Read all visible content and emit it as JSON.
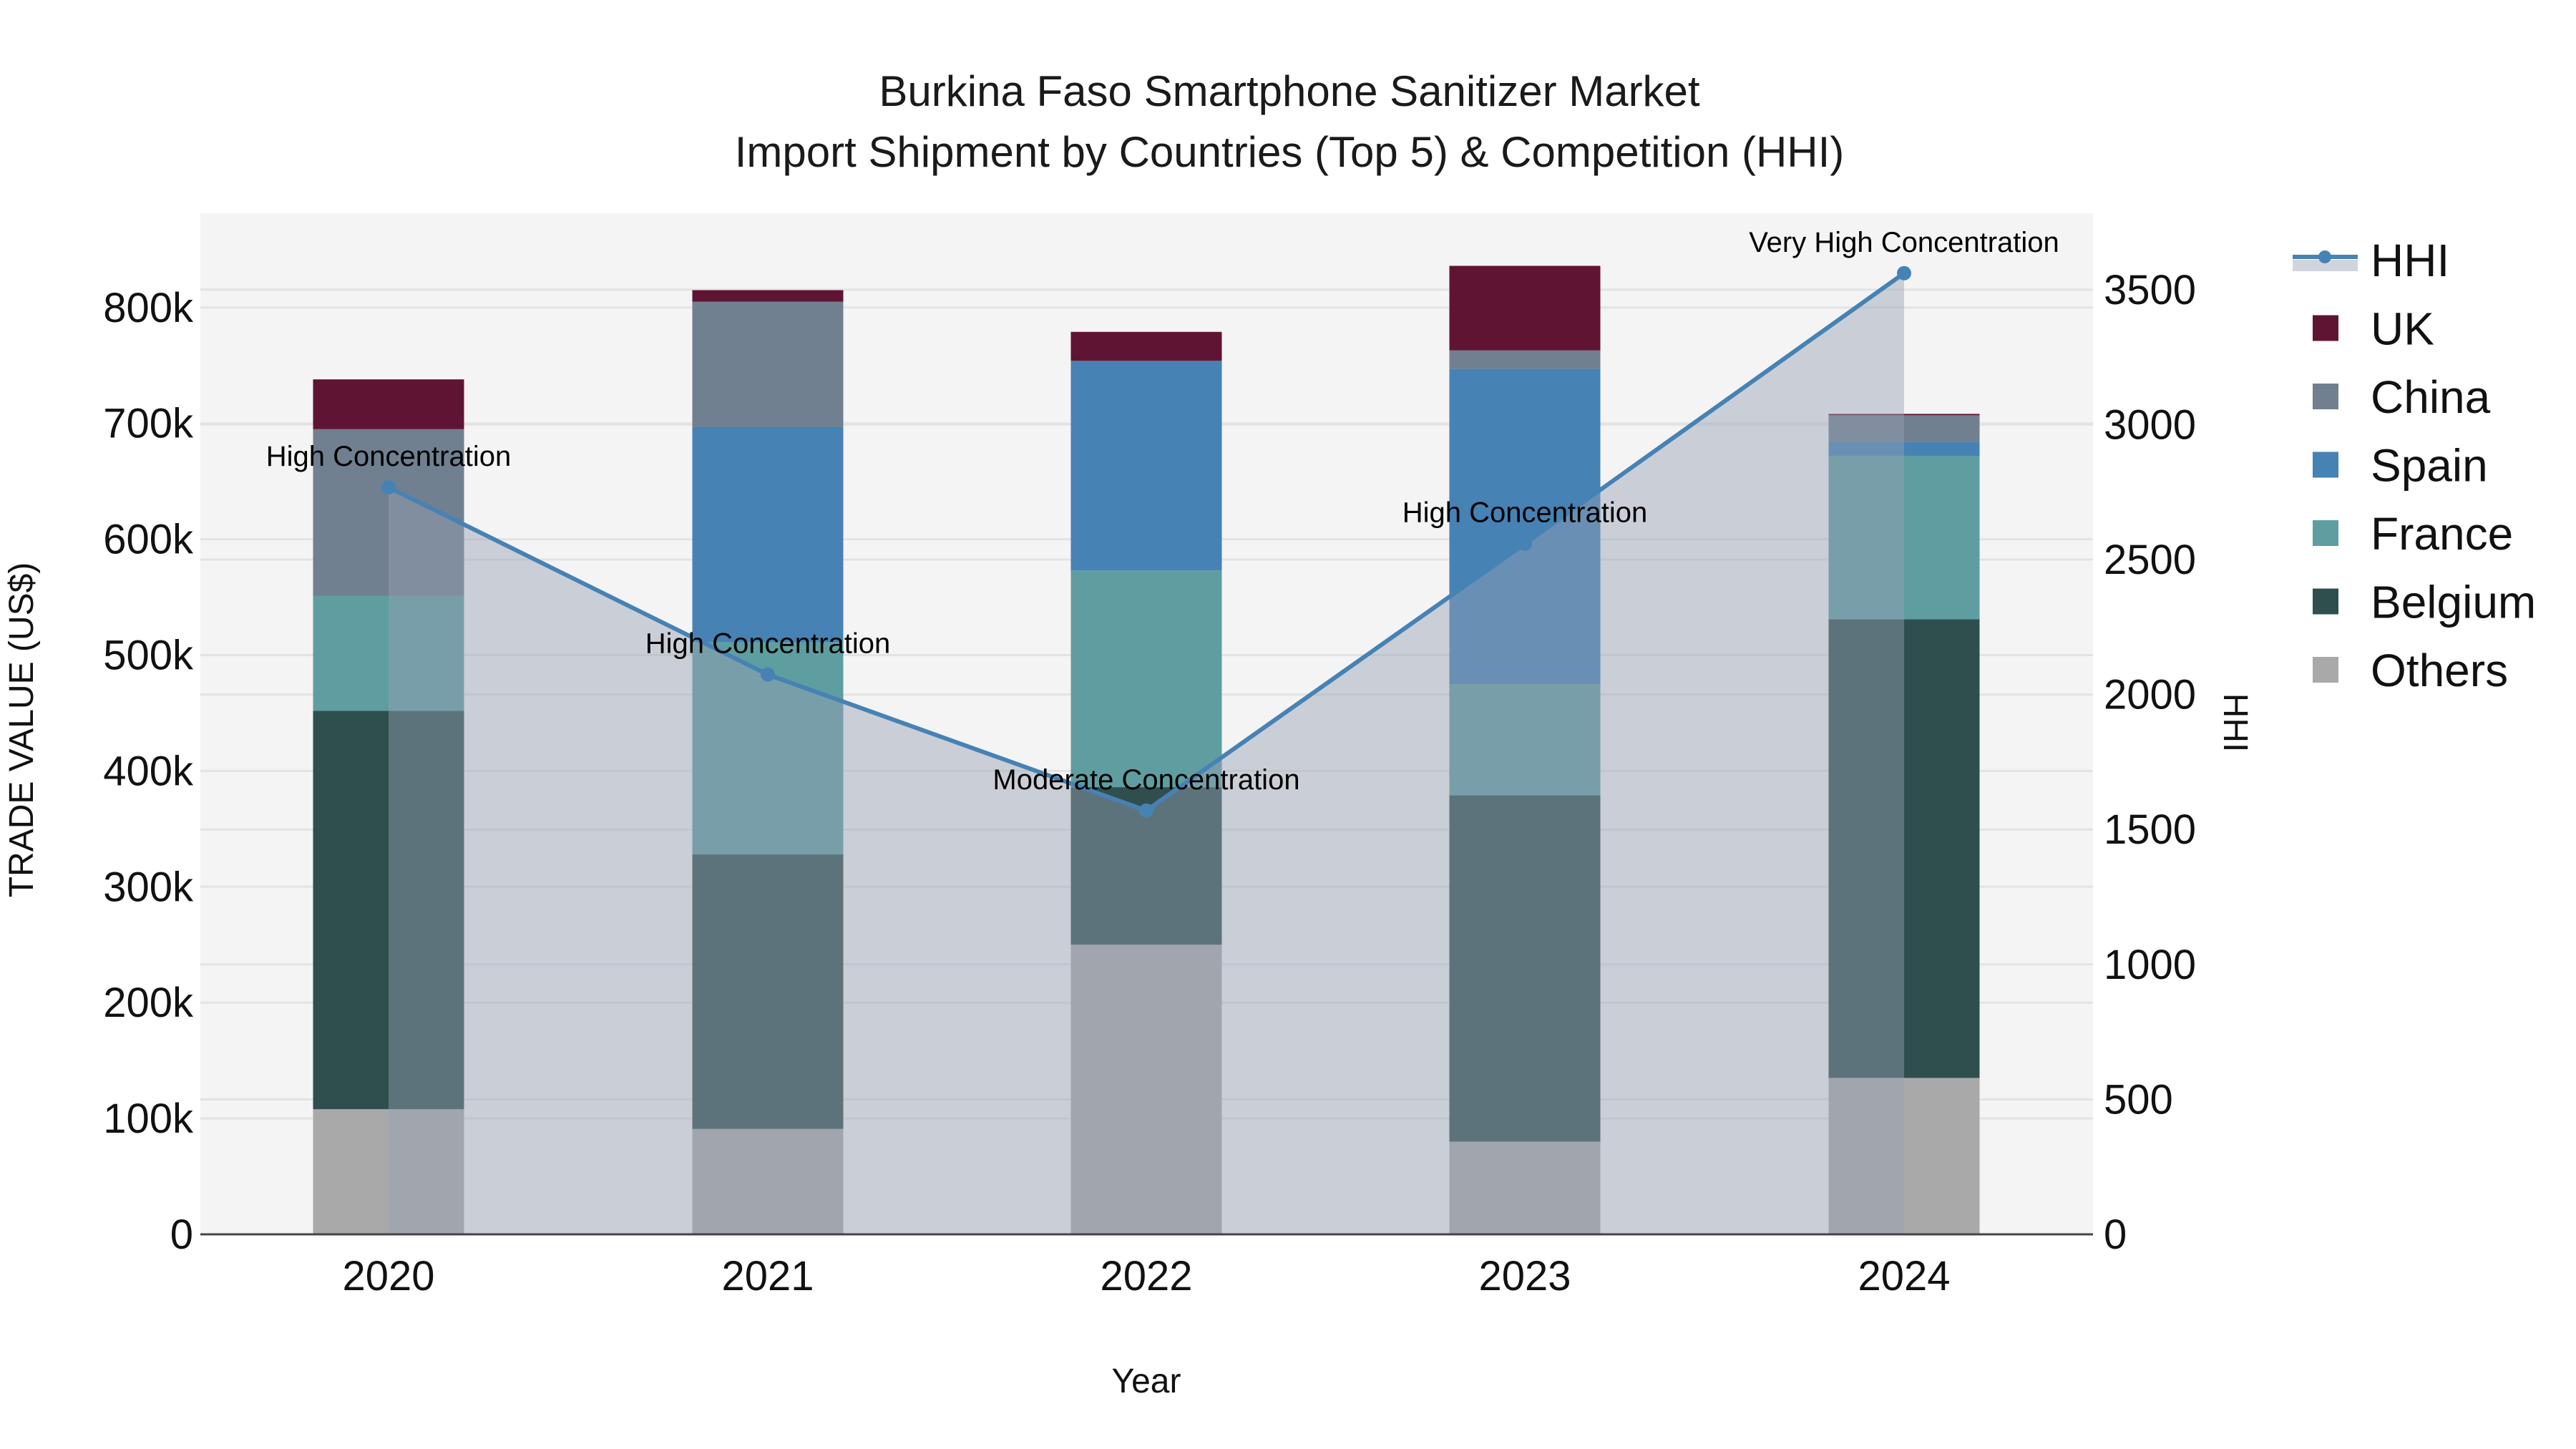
{
  "chart_data": {
    "type": "bar",
    "stacked": true,
    "title": "Burkina Faso Smartphone Sanitizer Market",
    "subtitle": "Import Shipment by Countries (Top 5) & Competition (HHI)",
    "xlabel": "Year",
    "ylabel": "TRADE VALUE (US$)",
    "y2label": "HHI",
    "categories": [
      "2020",
      "2021",
      "2022",
      "2023",
      "2024"
    ],
    "ylim": [
      0,
      880000
    ],
    "y2lim": [
      0,
      3800
    ],
    "yticks": [
      0,
      100000,
      200000,
      300000,
      400000,
      500000,
      600000,
      700000,
      800000
    ],
    "ytick_labels": [
      "0",
      "100k",
      "200k",
      "300k",
      "400k",
      "500k",
      "600k",
      "700k",
      "800k"
    ],
    "y2ticks": [
      0,
      500,
      1000,
      1500,
      2000,
      2500,
      3000,
      3500
    ],
    "y2tick_labels": [
      "0",
      "500",
      "1000",
      "1500",
      "2000",
      "2500",
      "3000",
      "3500"
    ],
    "grid": true,
    "legend_position": "right",
    "series": [
      {
        "name": "Others",
        "color": "#a9a9a9",
        "values": [
          108000,
          91000,
          250000,
          80000,
          135000
        ]
      },
      {
        "name": "Belgium",
        "color": "#2f4f4f",
        "values": [
          344000,
          237000,
          136000,
          299000,
          396000
        ]
      },
      {
        "name": "France",
        "color": "#5f9ea0",
        "values": [
          99000,
          183000,
          187000,
          96000,
          141000
        ]
      },
      {
        "name": "Spain",
        "color": "#4682b4",
        "values": [
          0,
          186000,
          181000,
          272000,
          12000
        ]
      },
      {
        "name": "China",
        "color": "#708090",
        "values": [
          144000,
          108000,
          0,
          16000,
          23000
        ]
      },
      {
        "name": "UK",
        "color": "#601434",
        "values": [
          43000,
          10000,
          25000,
          73000,
          1200
        ]
      }
    ],
    "line_series": {
      "name": "HHI",
      "axis": "y2",
      "color": "#4682b4",
      "fill": "tozeroy",
      "values": [
        2768,
        2074,
        1570,
        2559,
        3561
      ],
      "annotations": [
        "High Concentration",
        "High Concentration",
        "Moderate Concentration",
        "High Concentration",
        "Very High Concentration"
      ]
    }
  },
  "legend": {
    "items": [
      {
        "label": "HHI",
        "type": "line",
        "color": "#4682b4"
      },
      {
        "label": "UK",
        "type": "box",
        "color": "#601434"
      },
      {
        "label": "China",
        "type": "box",
        "color": "#708090"
      },
      {
        "label": "Spain",
        "type": "box",
        "color": "#4682b4"
      },
      {
        "label": "France",
        "type": "box",
        "color": "#5f9ea0"
      },
      {
        "label": "Belgium",
        "type": "box",
        "color": "#2f4f4f"
      },
      {
        "label": "Others",
        "type": "box",
        "color": "#a9a9a9"
      }
    ]
  },
  "colors": {
    "plot_bg": "#f4f4f4",
    "grid": "#e3e3e3",
    "area_fill": "rgba(150,160,180,0.45)",
    "axis_line": "#444444"
  }
}
